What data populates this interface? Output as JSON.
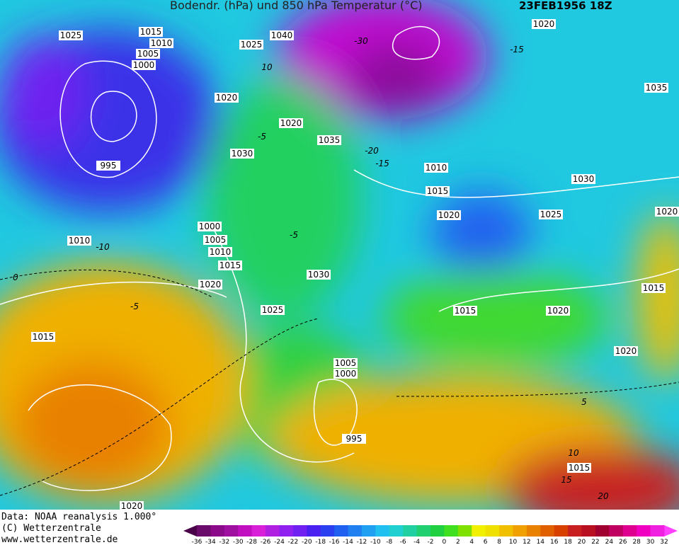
{
  "header": {
    "title": "Bodendr. (hPa) und 850 hPa Temperatur (°C)",
    "date": "23FEB1956 18Z"
  },
  "footer": {
    "data": "Data: NOAA reanalysis 1.000°",
    "copyright": "(C) Wetterzentrale",
    "url": "www.wetterzentrale.de"
  },
  "isobar_labels": [
    "1025",
    "1015",
    "1010",
    "1005",
    "1000",
    "995",
    "1010",
    "1000",
    "1005",
    "1010",
    "1015",
    "1020",
    "1015",
    "1025",
    "1030",
    "1005",
    "1000",
    "995",
    "1020",
    "1040",
    "1025",
    "1020",
    "1020",
    "1030",
    "1035",
    "1010",
    "1015",
    "1020",
    "1030",
    "1025",
    "1020",
    "1035",
    "1020",
    "1015",
    "1015",
    "1020",
    "1020",
    "1015"
  ],
  "temperature_labels": [
    "-30",
    "-15",
    "-10",
    "-5",
    "0",
    "-5",
    "5",
    "10",
    "15",
    "20",
    "-20",
    "-15",
    "-5",
    "10"
  ],
  "colorbar": {
    "labels": [
      "-36",
      "-34",
      "-32",
      "-30",
      "-28",
      "-26",
      "-24",
      "-22",
      "-20",
      "-18",
      "-16",
      "-14",
      "-12",
      "-10",
      "-8",
      "-6",
      "-4",
      "-2",
      "0",
      "2",
      "4",
      "6",
      "8",
      "10",
      "12",
      "14",
      "16",
      "18",
      "20",
      "22",
      "24",
      "26",
      "28",
      "30",
      "32"
    ],
    "colors": [
      "#6a0a6a",
      "#8a0a8a",
      "#a010a0",
      "#c010c0",
      "#d820d8",
      "#b020e0",
      "#9020f0",
      "#7020f0",
      "#4a20f0",
      "#2a40f0",
      "#2060f0",
      "#2080f0",
      "#20a0f0",
      "#20c0f0",
      "#20d0d0",
      "#20d0a0",
      "#20d070",
      "#20d040",
      "#40e020",
      "#80e000",
      "#f0f000",
      "#f0e000",
      "#f0c000",
      "#f0a000",
      "#e88000",
      "#e06000",
      "#d84000",
      "#c82020",
      "#b81020",
      "#a00030",
      "#c00060",
      "#e00090",
      "#f000c0",
      "#f020e0"
    ]
  }
}
